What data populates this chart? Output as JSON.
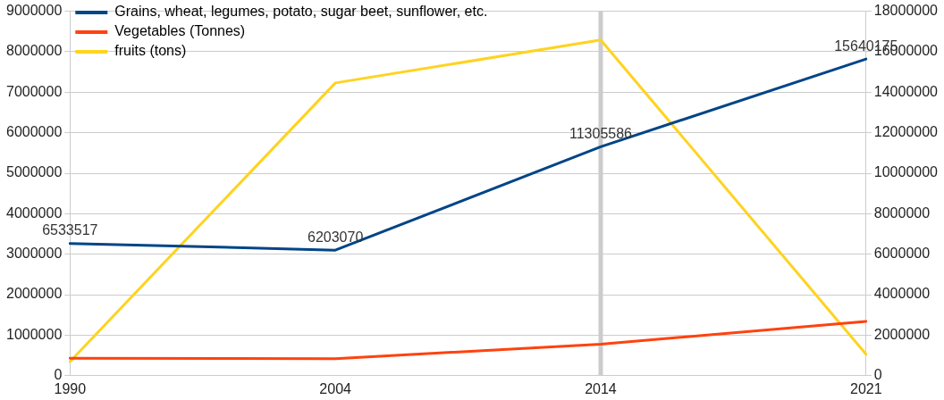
{
  "chart_data": {
    "type": "line",
    "categories": [
      "1990",
      "2004",
      "2014",
      "2021"
    ],
    "series": [
      {
        "name": "Grains, wheat, legumes, potato, sugar beet, sunflower, etc.",
        "color": "#004586",
        "axis": "y2",
        "values": [
          6533517,
          6203070,
          11305586,
          15640175
        ],
        "value_labels": [
          "6533517",
          "6203070",
          "11305586",
          "15640175"
        ]
      },
      {
        "name": "Vegetables (Tonnes)",
        "color": "#ff420e",
        "values": [
          430000,
          420000,
          780000,
          1340000
        ]
      },
      {
        "name": "fruits (tons)",
        "color": "#ffd320",
        "values": [
          350000,
          7230000,
          8290000,
          530000
        ]
      }
    ],
    "ylim": [
      0,
      9000000
    ],
    "yticks": [
      0,
      1000000,
      2000000,
      3000000,
      4000000,
      5000000,
      6000000,
      7000000,
      8000000,
      9000000
    ],
    "y2lim": [
      0,
      18000000
    ],
    "y2ticks": [
      0,
      2000000,
      4000000,
      6000000,
      8000000,
      10000000,
      12000000,
      14000000,
      16000000,
      18000000
    ],
    "ref_lines": [
      {
        "axis": "x",
        "value": "2014",
        "color": "#cccccc"
      }
    ],
    "grid": "y",
    "legend": "top left",
    "marker": "none",
    "line_style": "solid"
  }
}
